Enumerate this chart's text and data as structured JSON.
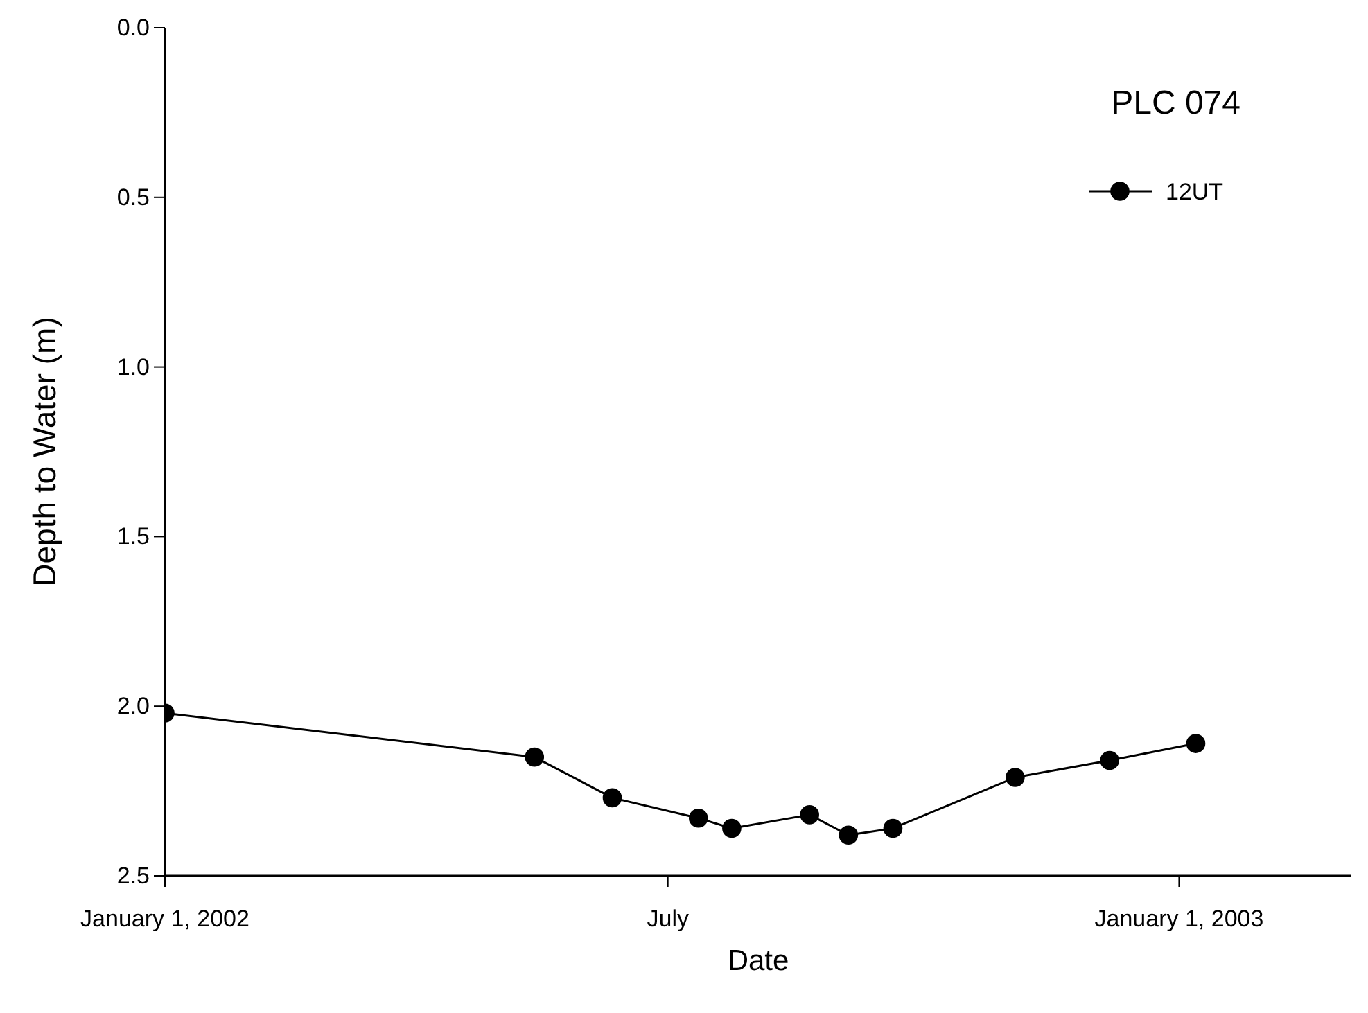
{
  "chart_data": {
    "type": "line",
    "title": "PLC 074",
    "xlabel": "Date",
    "ylabel": "Depth to Water (m)",
    "xlim": [
      "2002-01-01",
      "2003-03-04"
    ],
    "xticks": [
      {
        "value": "2002-01-01",
        "label": "January 1, 2002"
      },
      {
        "value": "2002-07-01",
        "label": "July"
      },
      {
        "value": "2003-01-01",
        "label": "January 1, 2003"
      }
    ],
    "ylim": [
      2.5,
      0
    ],
    "yticks": [
      {
        "value": 0,
        "label": "0.0"
      },
      {
        "value": 0.5,
        "label": "0.5"
      },
      {
        "value": 1,
        "label": "1.0"
      },
      {
        "value": 1.5,
        "label": "1.5"
      },
      {
        "value": 2,
        "label": "2.0"
      },
      {
        "value": 2.5,
        "label": "2.5"
      }
    ],
    "series": [
      {
        "name": "12UT",
        "color": "#000000",
        "x": [
          "2002-01-01",
          "2002-05-14",
          "2002-06-11",
          "2002-07-12",
          "2002-07-24",
          "2002-08-21",
          "2002-09-04",
          "2002-09-20",
          "2002-11-03",
          "2002-12-07",
          "2003-01-07"
        ],
        "values": [
          2.02,
          2.15,
          2.27,
          2.33,
          2.36,
          2.32,
          2.38,
          2.36,
          2.21,
          2.16,
          2.11
        ]
      }
    ],
    "marker": "circle",
    "line_style": "solid",
    "legend": "top right",
    "grid": false
  }
}
